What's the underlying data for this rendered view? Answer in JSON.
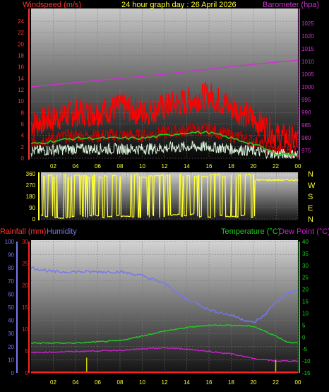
{
  "title": "24 hour graph day : 26 April 2026",
  "colors": {
    "wind": "#ff0000",
    "gust": "#ff0000",
    "avgwind": "#22cc22",
    "lightwind": "#d8f0d8",
    "barometer": "#cc33cc",
    "direction": "#ffff33",
    "rain": "#ff2222",
    "rainbar": "#cccc00",
    "humidity": "#7777ee",
    "temperature": "#22cc22",
    "dewpoint": "#cc22cc",
    "axis_left": "#ff3333",
    "axis_right": "#cc33cc",
    "hours": "#ffff33"
  },
  "chart_data": [
    {
      "type": "line",
      "id": "wind-baro",
      "left_label": "Windspeed (m/s)",
      "right_label": "Barometer (hpa)",
      "x_ticks": [
        "02",
        "04",
        "06",
        "08",
        "10",
        "12",
        "14",
        "16",
        "18",
        "20",
        "22",
        "00"
      ],
      "ylim_left": [
        0,
        25
      ],
      "yticks_left": [
        0,
        2,
        4,
        6,
        8,
        10,
        12,
        14,
        16,
        18,
        20,
        22,
        24
      ],
      "ylim_right": [
        972,
        1028
      ],
      "yticks_right": [
        975,
        980,
        985,
        990,
        995,
        1000,
        1005,
        1010,
        1015,
        1020,
        1025
      ],
      "barometer": {
        "x": [
          0,
          6,
          12,
          18,
          24
        ],
        "y": [
          1000,
          1002.5,
          1005,
          1008,
          1010.5
        ]
      },
      "avg_wind": {
        "x": [
          0,
          2,
          4,
          6,
          8,
          10,
          12,
          14,
          16,
          18,
          20,
          22,
          24
        ],
        "y": [
          2.5,
          3.0,
          3.5,
          3.5,
          3.5,
          3.5,
          4.0,
          4.5,
          4.5,
          3.5,
          2.5,
          0.8,
          0.6
        ]
      },
      "gust_max": {
        "x": [
          0,
          2,
          4,
          6,
          8,
          10,
          12,
          14,
          16,
          18,
          20,
          22,
          24
        ],
        "y": [
          5,
          6,
          7,
          7,
          8,
          7,
          8,
          9,
          10,
          8,
          6,
          3,
          2
        ]
      }
    },
    {
      "type": "scatter",
      "id": "direction",
      "ylim": [
        0,
        360
      ],
      "yticks": [
        0,
        45,
        90,
        135,
        180,
        225,
        270,
        315,
        360
      ],
      "compass_labels": [
        "N",
        "W",
        "S",
        "E",
        "N"
      ],
      "x_ticks": [
        "02",
        "04",
        "06",
        "08",
        "10",
        "12",
        "14",
        "16",
        "18",
        "20",
        "22",
        "00"
      ]
    },
    {
      "type": "line",
      "id": "rain-hum-temp",
      "left_label_rain": "Rainfall (mm)",
      "left_label_hum": "Humidity",
      "right_label_temp": "Temperature (°C)",
      "right_label_dew": "Dew Point (°C)",
      "x_ticks": [
        "02",
        "04",
        "06",
        "08",
        "10",
        "12",
        "14",
        "16",
        "18",
        "20",
        "22",
        "00"
      ],
      "ylim_humidity": [
        0,
        100
      ],
      "yticks_humidity": [
        0,
        10,
        20,
        30,
        40,
        50,
        60,
        70,
        80,
        90,
        100
      ],
      "ylim_rain": [
        0,
        30
      ],
      "yticks_rain": [
        0,
        5,
        10,
        15,
        20,
        25,
        30
      ],
      "ylim_temp": [
        -15,
        40
      ],
      "yticks_temp": [
        -15,
        -10,
        -5,
        0,
        5,
        10,
        15,
        20,
        25,
        30,
        35,
        40
      ],
      "humidity": {
        "x": [
          0,
          2,
          4,
          6,
          8,
          10,
          12,
          14,
          15,
          16,
          18,
          20,
          21,
          22,
          23,
          24
        ],
        "y": [
          80,
          77,
          77,
          77,
          77,
          74,
          68,
          56,
          53,
          48,
          44,
          38,
          44,
          54,
          60,
          63
        ]
      },
      "temperature": {
        "x": [
          0,
          4,
          8,
          10,
          12,
          14,
          16,
          18,
          20,
          22,
          23,
          24
        ],
        "y": [
          -2.5,
          -2.5,
          -1.5,
          0.5,
          2.5,
          4.0,
          5.0,
          5.0,
          4.5,
          0.5,
          -2,
          -2.5
        ]
      },
      "dewpoint": {
        "x": [
          0,
          4,
          8,
          10,
          12,
          14,
          16,
          18,
          20,
          22,
          24
        ],
        "y": [
          -6.5,
          -6,
          -5.5,
          -5,
          -4.5,
          -5,
          -6,
          -7,
          -9,
          -10,
          -10
        ]
      },
      "rain_events": {
        "x": [
          5,
          22
        ],
        "y": [
          3.5,
          3.0
        ]
      }
    }
  ]
}
